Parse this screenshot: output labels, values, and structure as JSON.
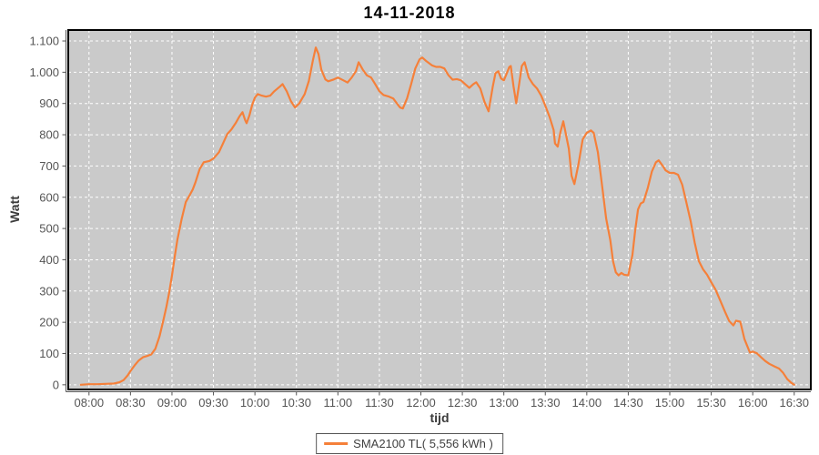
{
  "title": "14-11-2018",
  "legend": {
    "label": "SMA2100 TL( 5,556 kWh )"
  },
  "colors": {
    "series": "#f5803a",
    "plot_bg": "#cacaca",
    "grid": "#ffffff",
    "tick_label": "#555555",
    "axis": "#545454",
    "border": "#000000"
  },
  "chart_data": {
    "type": "line",
    "title": "14-11-2018",
    "xlabel": "tijd",
    "ylabel": "Watt",
    "grid": true,
    "legend_position": "bottom-center",
    "x_ticks": [
      "08:00",
      "08:30",
      "09:00",
      "09:30",
      "10:00",
      "10:30",
      "11:00",
      "11:30",
      "12:00",
      "12:30",
      "13:00",
      "13:30",
      "14:00",
      "14:30",
      "15:00",
      "15:30",
      "16:00",
      "16:30"
    ],
    "y_tick_values": [
      0,
      100,
      200,
      300,
      400,
      500,
      600,
      700,
      800,
      900,
      1000,
      1100
    ],
    "y_tick_labels": [
      "0",
      "100",
      "200",
      "300",
      "400",
      "500",
      "600",
      "700",
      "800",
      "900",
      "1.000",
      "1.100"
    ],
    "x_range_minutes": [
      465,
      1002
    ],
    "ylim": [
      -15,
      1135
    ],
    "series": [
      {
        "name": "SMA2100 TL( 5,556 kWh )",
        "color": "#f5803a",
        "points": [
          [
            "07:54",
            0
          ],
          [
            "08:00",
            2
          ],
          [
            "08:06",
            2
          ],
          [
            "08:12",
            3
          ],
          [
            "08:18",
            4
          ],
          [
            "08:22",
            8
          ],
          [
            "08:25",
            15
          ],
          [
            "08:28",
            30
          ],
          [
            "08:30",
            44
          ],
          [
            "08:33",
            62
          ],
          [
            "08:36",
            78
          ],
          [
            "08:39",
            88
          ],
          [
            "08:42",
            92
          ],
          [
            "08:45",
            97
          ],
          [
            "08:48",
            115
          ],
          [
            "08:51",
            155
          ],
          [
            "08:54",
            210
          ],
          [
            "08:56",
            250
          ],
          [
            "08:58",
            295
          ],
          [
            "09:00",
            350
          ],
          [
            "09:02",
            410
          ],
          [
            "09:04",
            465
          ],
          [
            "09:07",
            530
          ],
          [
            "09:10",
            585
          ],
          [
            "09:13",
            608
          ],
          [
            "09:15",
            625
          ],
          [
            "09:17",
            648
          ],
          [
            "09:20",
            690
          ],
          [
            "09:23",
            712
          ],
          [
            "09:27",
            716
          ],
          [
            "09:30",
            724
          ],
          [
            "09:34",
            744
          ],
          [
            "09:37",
            773
          ],
          [
            "09:40",
            802
          ],
          [
            "09:43",
            817
          ],
          [
            "09:46",
            837
          ],
          [
            "09:49",
            860
          ],
          [
            "09:51",
            872
          ],
          [
            "09:53",
            846
          ],
          [
            "09:54",
            837
          ],
          [
            "09:56",
            862
          ],
          [
            "09:58",
            895
          ],
          [
            "10:00",
            919
          ],
          [
            "10:02",
            930
          ],
          [
            "10:05",
            925
          ],
          [
            "10:08",
            922
          ],
          [
            "10:11",
            925
          ],
          [
            "10:14",
            939
          ],
          [
            "10:18",
            954
          ],
          [
            "10:20",
            962
          ],
          [
            "10:23",
            939
          ],
          [
            "10:26",
            908
          ],
          [
            "10:29",
            887
          ],
          [
            "10:32",
            900
          ],
          [
            "10:34",
            915
          ],
          [
            "10:36",
            930
          ],
          [
            "10:39",
            972
          ],
          [
            "10:42",
            1040
          ],
          [
            "10:44",
            1079
          ],
          [
            "10:46",
            1058
          ],
          [
            "10:48",
            1008
          ],
          [
            "10:51",
            977
          ],
          [
            "10:53",
            971
          ],
          [
            "10:57",
            977
          ],
          [
            "11:00",
            983
          ],
          [
            "11:04",
            974
          ],
          [
            "11:07",
            967
          ],
          [
            "11:10",
            983
          ],
          [
            "11:13",
            1003
          ],
          [
            "11:15",
            1032
          ],
          [
            "11:18",
            1008
          ],
          [
            "11:21",
            990
          ],
          [
            "11:24",
            983
          ],
          [
            "11:27",
            962
          ],
          [
            "11:30",
            939
          ],
          [
            "11:33",
            927
          ],
          [
            "11:37",
            922
          ],
          [
            "11:40",
            916
          ],
          [
            "11:43",
            898
          ],
          [
            "11:45",
            887
          ],
          [
            "11:47",
            884
          ],
          [
            "11:50",
            916
          ],
          [
            "11:53",
            962
          ],
          [
            "11:56",
            1012
          ],
          [
            "11:59",
            1041
          ],
          [
            "12:01",
            1047
          ],
          [
            "12:04",
            1035
          ],
          [
            "12:08",
            1022
          ],
          [
            "12:11",
            1017
          ],
          [
            "12:14",
            1017
          ],
          [
            "12:17",
            1012
          ],
          [
            "12:20",
            990
          ],
          [
            "12:23",
            976
          ],
          [
            "12:26",
            978
          ],
          [
            "12:29",
            974
          ],
          [
            "12:32",
            962
          ],
          [
            "12:35",
            950
          ],
          [
            "12:38",
            962
          ],
          [
            "12:40",
            968
          ],
          [
            "12:43",
            948
          ],
          [
            "12:46",
            905
          ],
          [
            "12:49",
            875
          ],
          [
            "12:52",
            954
          ],
          [
            "12:54",
            997
          ],
          [
            "12:56",
            1003
          ],
          [
            "12:58",
            980
          ],
          [
            "13:00",
            974
          ],
          [
            "13:02",
            995
          ],
          [
            "13:04",
            1017
          ],
          [
            "13:05",
            1020
          ],
          [
            "13:07",
            955
          ],
          [
            "13:09",
            901
          ],
          [
            "13:11",
            960
          ],
          [
            "13:13",
            1020
          ],
          [
            "13:15",
            1032
          ],
          [
            "13:18",
            983
          ],
          [
            "13:21",
            962
          ],
          [
            "13:24",
            948
          ],
          [
            "13:27",
            925
          ],
          [
            "13:30",
            893
          ],
          [
            "13:33",
            858
          ],
          [
            "13:36",
            815
          ],
          [
            "13:37",
            772
          ],
          [
            "13:39",
            762
          ],
          [
            "13:41",
            810
          ],
          [
            "13:43",
            843
          ],
          [
            "13:45",
            800
          ],
          [
            "13:47",
            755
          ],
          [
            "13:49",
            669
          ],
          [
            "13:51",
            642
          ],
          [
            "13:54",
            706
          ],
          [
            "13:57",
            785
          ],
          [
            "14:00",
            806
          ],
          [
            "14:03",
            814
          ],
          [
            "14:05",
            806
          ],
          [
            "14:08",
            744
          ],
          [
            "14:11",
            640
          ],
          [
            "14:14",
            532
          ],
          [
            "14:17",
            462
          ],
          [
            "14:19",
            395
          ],
          [
            "14:21",
            360
          ],
          [
            "14:23",
            350
          ],
          [
            "14:25",
            358
          ],
          [
            "14:27",
            352
          ],
          [
            "14:30",
            350
          ],
          [
            "14:33",
            416
          ],
          [
            "14:35",
            494
          ],
          [
            "14:37",
            561
          ],
          [
            "14:39",
            580
          ],
          [
            "14:41",
            585
          ],
          [
            "14:44",
            628
          ],
          [
            "14:47",
            682
          ],
          [
            "14:50",
            712
          ],
          [
            "14:52",
            718
          ],
          [
            "14:55",
            700
          ],
          [
            "14:57",
            686
          ],
          [
            "15:00",
            678
          ],
          [
            "15:03",
            678
          ],
          [
            "15:06",
            672
          ],
          [
            "15:09",
            640
          ],
          [
            "15:12",
            584
          ],
          [
            "15:15",
            526
          ],
          [
            "15:18",
            455
          ],
          [
            "15:21",
            396
          ],
          [
            "15:24",
            370
          ],
          [
            "15:27",
            352
          ],
          [
            "15:30",
            328
          ],
          [
            "15:33",
            305
          ],
          [
            "15:36",
            275
          ],
          [
            "15:40",
            233
          ],
          [
            "15:43",
            204
          ],
          [
            "15:46",
            190
          ],
          [
            "15:48",
            205
          ],
          [
            "15:51",
            202
          ],
          [
            "15:54",
            146
          ],
          [
            "15:58",
            103
          ],
          [
            "16:00",
            106
          ],
          [
            "16:03",
            101
          ],
          [
            "16:06",
            88
          ],
          [
            "16:09",
            76
          ],
          [
            "16:12",
            67
          ],
          [
            "16:16",
            58
          ],
          [
            "16:19",
            52
          ],
          [
            "16:22",
            38
          ],
          [
            "16:25",
            18
          ],
          [
            "16:28",
            6
          ],
          [
            "16:30",
            0
          ]
        ]
      }
    ]
  }
}
